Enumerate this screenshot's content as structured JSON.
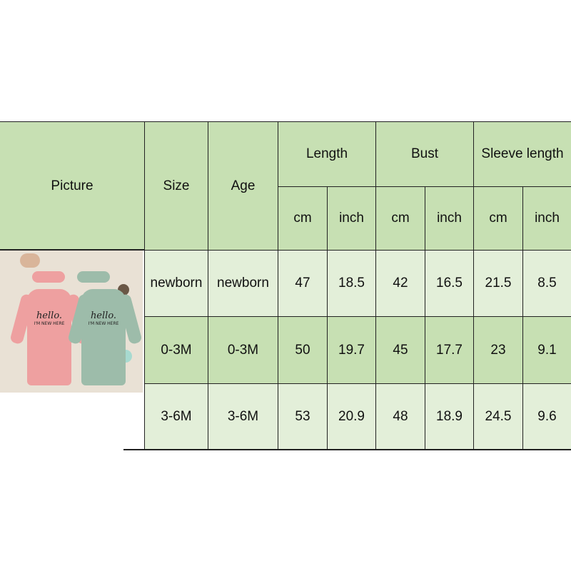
{
  "headers": {
    "picture": "Picture",
    "size": "Size",
    "age": "Age",
    "length": "Length",
    "bust": "Bust",
    "sleeve": "Sleeve length",
    "cm": "cm",
    "inch": "inch"
  },
  "product_image": {
    "print_line1": "hello.",
    "print_line2": "I'M NEW HERE",
    "colors": [
      "#eea0a0",
      "#9dbcaa"
    ]
  },
  "rows": [
    {
      "size": "newborn",
      "age": "newborn",
      "length_cm": "47",
      "length_in": "18.5",
      "bust_cm": "42",
      "bust_in": "16.5",
      "sleeve_cm": "21.5",
      "sleeve_in": "8.5"
    },
    {
      "size": "0-3M",
      "age": "0-3M",
      "length_cm": "50",
      "length_in": "19.7",
      "bust_cm": "45",
      "bust_in": "17.7",
      "sleeve_cm": "23",
      "sleeve_in": "9.1"
    },
    {
      "size": "3-6M",
      "age": "3-6M",
      "length_cm": "53",
      "length_in": "20.9",
      "bust_cm": "48",
      "bust_in": "18.9",
      "sleeve_cm": "24.5",
      "sleeve_in": "9.6"
    }
  ]
}
